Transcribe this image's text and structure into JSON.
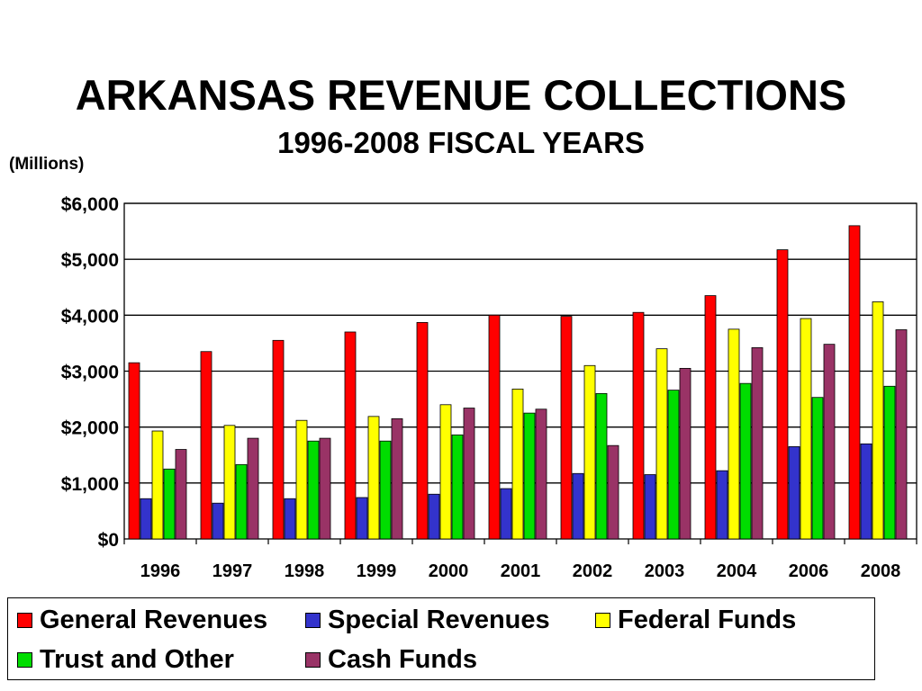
{
  "chart_data": {
    "type": "bar",
    "title": "ARKANSAS REVENUE COLLECTIONS",
    "subtitle": "1996-2008 FISCAL YEARS",
    "ylabel": "(Millions)",
    "xlabel": "",
    "ylim": [
      0,
      6000
    ],
    "yticks": [
      0,
      1000,
      2000,
      3000,
      4000,
      5000,
      6000
    ],
    "ytick_labels": [
      "$0",
      "$1,000",
      "$2,000",
      "$3,000",
      "$4,000",
      "$5,000",
      "$6,000"
    ],
    "grid": true,
    "legend_position": "bottom",
    "categories": [
      "1996",
      "1997",
      "1998",
      "1999",
      "2000",
      "2001",
      "2002",
      "2003",
      "2004",
      "2006",
      "2008"
    ],
    "series": [
      {
        "name": "General Revenues",
        "color": "#ff0000",
        "values": [
          3150,
          3350,
          3550,
          3700,
          3870,
          4000,
          3980,
          4050,
          4350,
          5170,
          5600
        ]
      },
      {
        "name": "Special Revenues",
        "color": "#3333cc",
        "values": [
          720,
          640,
          720,
          740,
          800,
          900,
          1170,
          1150,
          1220,
          1650,
          1700
        ]
      },
      {
        "name": "Federal Funds",
        "color": "#ffff00",
        "values": [
          1930,
          2030,
          2120,
          2190,
          2400,
          2680,
          3100,
          3400,
          3750,
          3940,
          4240
        ]
      },
      {
        "name": "Trust and Other",
        "color": "#00dd00",
        "values": [
          1250,
          1330,
          1750,
          1750,
          1860,
          2250,
          2600,
          2660,
          2780,
          2530,
          2730
        ]
      },
      {
        "name": "Cash Funds",
        "color": "#993366",
        "values": [
          1600,
          1800,
          1800,
          2150,
          2340,
          2320,
          1670,
          3050,
          3420,
          3480,
          3740
        ]
      }
    ]
  }
}
